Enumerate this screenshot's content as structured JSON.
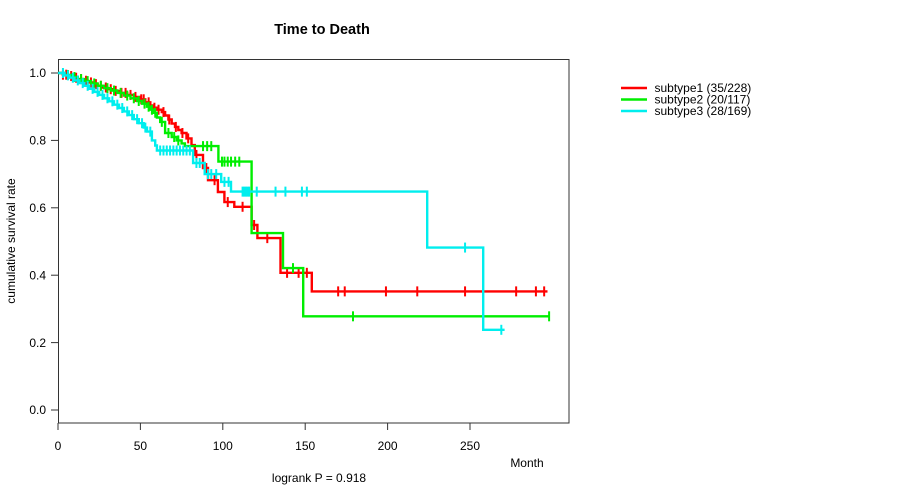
{
  "chart_data": {
    "type": "line",
    "variant": "kaplan-meier-step",
    "title": "Time to Death",
    "xlabel": "Month",
    "ylabel": "cumulative survival rate",
    "footnote": "logrank P = 0.918",
    "xlim": [
      0,
      310
    ],
    "ylim": [
      0.0,
      1.0
    ],
    "x_ticks": [
      {
        "v": 0,
        "label": "0"
      },
      {
        "v": 50,
        "label": "50"
      },
      {
        "v": 100,
        "label": "100"
      },
      {
        "v": 150,
        "label": "150"
      },
      {
        "v": 200,
        "label": "200"
      },
      {
        "v": 250,
        "label": "250"
      }
    ],
    "y_ticks": [
      {
        "v": 0.0,
        "label": "0.0"
      },
      {
        "v": 0.2,
        "label": "0.2"
      },
      {
        "v": 0.4,
        "label": "0.4"
      },
      {
        "v": 0.6,
        "label": "0.6"
      },
      {
        "v": 0.8,
        "label": "0.8"
      },
      {
        "v": 1.0,
        "label": "1.0"
      }
    ],
    "grid": false,
    "legend_position": "right-outside",
    "background": "#ffffff",
    "series": [
      {
        "name": "subtype1 (35/228)",
        "color": "#ff0000",
        "points": [
          [
            0,
            1.0
          ],
          [
            3,
            0.995
          ],
          [
            6,
            0.991
          ],
          [
            9,
            0.986
          ],
          [
            12,
            0.982
          ],
          [
            15,
            0.977
          ],
          [
            18,
            0.972
          ],
          [
            21,
            0.967
          ],
          [
            24,
            0.962
          ],
          [
            27,
            0.957
          ],
          [
            30,
            0.952
          ],
          [
            34,
            0.947
          ],
          [
            38,
            0.941
          ],
          [
            42,
            0.935
          ],
          [
            46,
            0.929
          ],
          [
            50,
            0.922
          ],
          [
            53,
            0.913
          ],
          [
            56,
            0.904
          ],
          [
            58,
            0.897
          ],
          [
            60,
            0.891
          ],
          [
            63,
            0.884
          ],
          [
            65,
            0.874
          ],
          [
            67,
            0.862
          ],
          [
            69,
            0.85
          ],
          [
            71,
            0.84
          ],
          [
            73,
            0.831
          ],
          [
            75,
            0.822
          ],
          [
            78,
            0.806
          ],
          [
            81,
            0.786
          ],
          [
            83,
            0.757
          ],
          [
            88,
            0.718
          ],
          [
            91,
            0.682
          ],
          [
            97,
            0.647
          ],
          [
            101,
            0.617
          ],
          [
            107,
            0.603
          ],
          [
            117.5,
            0.549
          ],
          [
            121,
            0.51
          ],
          [
            135,
            0.407
          ],
          [
            154,
            0.352
          ],
          [
            297,
            0.352
          ]
        ],
        "censor_months": [
          3,
          5,
          8,
          11,
          14,
          17,
          20,
          23,
          26,
          29,
          32,
          35,
          38.5,
          41,
          44,
          47,
          50.5,
          52,
          55,
          58.5,
          61,
          64,
          67.5,
          71.5,
          75.5,
          79,
          84,
          90,
          95,
          103,
          112,
          119,
          127,
          139,
          146,
          151,
          170,
          174,
          199,
          218,
          247,
          278,
          290,
          295
        ]
      },
      {
        "name": "subtype2 (20/117)",
        "color": "#00ee00",
        "points": [
          [
            0,
            1.0
          ],
          [
            4,
            0.994
          ],
          [
            8,
            0.988
          ],
          [
            12,
            0.982
          ],
          [
            16,
            0.976
          ],
          [
            20,
            0.969
          ],
          [
            24,
            0.962
          ],
          [
            28,
            0.955
          ],
          [
            32,
            0.948
          ],
          [
            36,
            0.941
          ],
          [
            40,
            0.933
          ],
          [
            44,
            0.925
          ],
          [
            48,
            0.917
          ],
          [
            51,
            0.909
          ],
          [
            54,
            0.9
          ],
          [
            56,
            0.891
          ],
          [
            58,
            0.882
          ],
          [
            60,
            0.868
          ],
          [
            62,
            0.855
          ],
          [
            65,
            0.822
          ],
          [
            69,
            0.81
          ],
          [
            72,
            0.8
          ],
          [
            75,
            0.791
          ],
          [
            77,
            0.783
          ],
          [
            97.3,
            0.737
          ],
          [
            117.5,
            0.525
          ],
          [
            136.5,
            0.421
          ],
          [
            148.8,
            0.278
          ],
          [
            298.5,
            0.278
          ]
        ],
        "censor_months": [
          6,
          10,
          14,
          18,
          22,
          26,
          30,
          34,
          38,
          42,
          46,
          49,
          52.5,
          55,
          57,
          59,
          63,
          67,
          70.5,
          73,
          88,
          90.5,
          93,
          99.5,
          101,
          103,
          105,
          107.5,
          110,
          142.6,
          179,
          298
        ]
      },
      {
        "name": "subtype3 (28/169)",
        "color": "#00eeee",
        "points": [
          [
            0,
            1.0
          ],
          [
            4,
            0.993
          ],
          [
            7,
            0.986
          ],
          [
            10,
            0.978
          ],
          [
            13,
            0.97
          ],
          [
            16,
            0.962
          ],
          [
            19,
            0.953
          ],
          [
            22,
            0.944
          ],
          [
            25,
            0.935
          ],
          [
            28,
            0.925
          ],
          [
            31,
            0.916
          ],
          [
            34,
            0.906
          ],
          [
            37,
            0.896
          ],
          [
            40,
            0.886
          ],
          [
            43,
            0.875
          ],
          [
            46,
            0.863
          ],
          [
            49,
            0.851
          ],
          [
            52,
            0.838
          ],
          [
            54,
            0.826
          ],
          [
            57,
            0.8
          ],
          [
            59,
            0.785
          ],
          [
            60,
            0.77
          ],
          [
            82,
            0.733
          ],
          [
            89,
            0.7
          ],
          [
            99,
            0.677
          ],
          [
            105,
            0.648
          ],
          [
            224,
            0.482
          ],
          [
            258,
            0.238
          ],
          [
            271,
            0.238
          ]
        ],
        "censor_months": [
          3,
          6,
          9,
          12,
          15,
          18,
          21,
          24,
          27,
          30,
          33,
          36,
          39,
          42,
          45,
          48,
          51,
          53,
          56,
          62,
          64,
          66,
          68,
          70,
          72,
          74,
          76,
          78,
          80,
          84,
          86,
          91,
          93,
          96,
          101,
          103.5,
          112,
          113,
          114,
          115,
          116,
          120.6,
          132,
          138,
          148,
          151,
          247,
          269
        ]
      }
    ]
  }
}
